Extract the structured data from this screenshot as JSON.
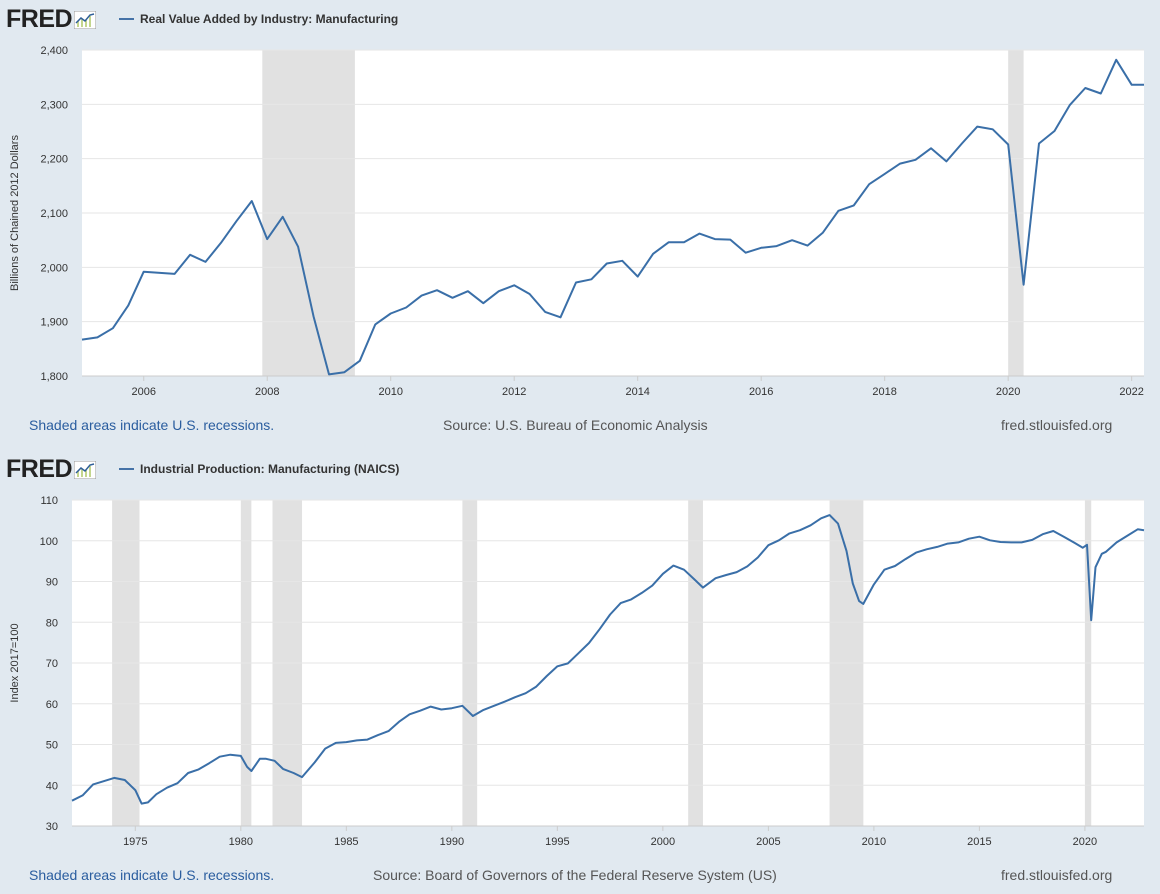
{
  "brand": {
    "logo_text": "FRED"
  },
  "footer": {
    "recession_note": "Shaded areas indicate U.S. recessions.",
    "site": "fred.stlouisfed.org"
  },
  "colors": {
    "line": "#3a6fa8",
    "recession": "#e1e1e1",
    "grid": "#e6e6e6",
    "plot_bg": "#ffffff",
    "page_bg": "#e1e9f0"
  },
  "chart_data": [
    {
      "type": "line",
      "title": "Real Value Added by Industry: Manufacturing",
      "ylabel": "Billions of Chained 2012 Dollars",
      "source": "Source: U.S. Bureau of Economic Analysis",
      "xlim": [
        2005.0,
        2022.2
      ],
      "ylim": [
        1800,
        2400
      ],
      "x_ticks": [
        2006,
        2008,
        2010,
        2012,
        2014,
        2016,
        2018,
        2020,
        2022
      ],
      "x_tick_labels": [
        "2006",
        "2008",
        "2010",
        "2012",
        "2014",
        "2016",
        "2018",
        "2020",
        "2022"
      ],
      "y_ticks": [
        1800,
        1900,
        2000,
        2100,
        2200,
        2300,
        2400
      ],
      "y_tick_labels": [
        "1,800",
        "1,900",
        "2,000",
        "2,100",
        "2,200",
        "2,300",
        "2,400"
      ],
      "recessions": [
        [
          2007.92,
          2009.42
        ],
        [
          2020.0,
          2020.25
        ]
      ],
      "grid": true,
      "series": [
        {
          "x": [
            2005.0,
            2005.25,
            2005.5,
            2005.75,
            2006.0,
            2006.5,
            2006.75,
            2007.0,
            2007.25,
            2007.5,
            2007.75,
            2008.0,
            2008.25,
            2008.5,
            2008.75,
            2009.0,
            2009.25,
            2009.5,
            2009.75,
            2010.0,
            2010.25,
            2010.5,
            2010.75,
            2011.0,
            2011.25,
            2011.5,
            2011.75,
            2012.0,
            2012.25,
            2012.5,
            2012.75,
            2013.0,
            2013.25,
            2013.5,
            2013.75,
            2014.0,
            2014.25,
            2014.5,
            2014.75,
            2015.0,
            2015.25,
            2015.5,
            2015.75,
            2016.0,
            2016.25,
            2016.5,
            2016.75,
            2017.0,
            2017.25,
            2017.5,
            2017.75,
            2018.0,
            2018.25,
            2018.5,
            2018.75,
            2019.0,
            2019.25,
            2019.5,
            2019.75,
            2020.0,
            2020.25,
            2020.5,
            2020.75,
            2021.0,
            2021.25,
            2021.5,
            2021.75,
            2022.0,
            2022.2
          ],
          "values": [
            1867,
            1871,
            1888,
            1930,
            1992,
            1988,
            2023,
            2010,
            2045,
            2085,
            2122,
            2052,
            2093,
            2038,
            1910,
            1803,
            1807,
            1828,
            1895,
            1915,
            1926,
            1948,
            1958,
            1944,
            1956,
            1934,
            1956,
            1967,
            1951,
            1918,
            1908,
            1972,
            1978,
            2007,
            2012,
            1983,
            2025,
            2046,
            2046,
            2062,
            2052,
            2051,
            2027,
            2036,
            2039,
            2050,
            2040,
            2064,
            2104,
            2114,
            2153,
            2172,
            2191,
            2198,
            2219,
            2195,
            2228,
            2259,
            2254,
            2226,
            1968,
            2228,
            2251,
            2299,
            2330,
            2320,
            2382,
            2336,
            2336
          ]
        }
      ]
    },
    {
      "type": "line",
      "title": "Industrial Production: Manufacturing (NAICS)",
      "ylabel": "Index 2017=100",
      "source": "Source: Board of Governors of the Federal Reserve System (US)",
      "xlim": [
        1972.0,
        2022.8
      ],
      "ylim": [
        30,
        110
      ],
      "x_ticks": [
        1975,
        1980,
        1985,
        1990,
        1995,
        2000,
        2005,
        2010,
        2015,
        2020
      ],
      "x_tick_labels": [
        "1975",
        "1980",
        "1985",
        "1990",
        "1995",
        "2000",
        "2005",
        "2010",
        "2015",
        "2020"
      ],
      "y_ticks": [
        30,
        40,
        50,
        60,
        70,
        80,
        90,
        100,
        110
      ],
      "y_tick_labels": [
        "30",
        "40",
        "50",
        "60",
        "70",
        "80",
        "90",
        "100",
        "110"
      ],
      "recessions": [
        [
          1973.9,
          1975.2
        ],
        [
          1980.0,
          1980.5
        ],
        [
          1981.5,
          1982.9
        ],
        [
          1990.5,
          1991.2
        ],
        [
          2001.2,
          2001.9
        ],
        [
          2007.9,
          2009.5
        ],
        [
          2020.0,
          2020.3
        ]
      ],
      "grid": true,
      "series": [
        {
          "x": [
            1972.0,
            1972.5,
            1973.0,
            1973.5,
            1974.0,
            1974.5,
            1975.0,
            1975.3,
            1975.6,
            1976.0,
            1976.5,
            1977.0,
            1977.5,
            1978.0,
            1978.5,
            1979.0,
            1979.5,
            1980.0,
            1980.3,
            1980.5,
            1980.9,
            1981.2,
            1981.6,
            1982.0,
            1982.5,
            1982.9,
            1983.5,
            1984.0,
            1984.5,
            1985.0,
            1985.5,
            1986.0,
            1986.5,
            1987.0,
            1987.5,
            1988.0,
            1988.5,
            1989.0,
            1989.5,
            1990.0,
            1990.5,
            1991.0,
            1991.5,
            1992.0,
            1992.5,
            1993.0,
            1993.5,
            1994.0,
            1994.5,
            1995.0,
            1995.5,
            1996.0,
            1996.5,
            1997.0,
            1997.5,
            1998.0,
            1998.5,
            1999.0,
            1999.5,
            2000.0,
            2000.5,
            2001.0,
            2001.5,
            2001.9,
            2002.5,
            2003.0,
            2003.5,
            2004.0,
            2004.5,
            2005.0,
            2005.5,
            2006.0,
            2006.5,
            2007.0,
            2007.5,
            2007.9,
            2008.3,
            2008.7,
            2009.0,
            2009.3,
            2009.5,
            2010.0,
            2010.5,
            2011.0,
            2011.5,
            2012.0,
            2012.5,
            2013.0,
            2013.5,
            2014.0,
            2014.5,
            2015.0,
            2015.5,
            2016.0,
            2016.5,
            2017.0,
            2017.5,
            2018.0,
            2018.5,
            2019.0,
            2019.5,
            2019.9,
            2020.1,
            2020.3,
            2020.5,
            2020.8,
            2021.0,
            2021.5,
            2022.0,
            2022.5,
            2022.8
          ],
          "values": [
            36.2,
            37.5,
            40.2,
            41.0,
            41.8,
            41.3,
            38.8,
            35.5,
            35.8,
            37.8,
            39.4,
            40.5,
            43.0,
            43.9,
            45.4,
            47.0,
            47.5,
            47.2,
            44.5,
            43.5,
            46.5,
            46.5,
            46.0,
            44.0,
            43.0,
            42.0,
            45.6,
            49.0,
            50.4,
            50.6,
            51.0,
            51.2,
            52.3,
            53.3,
            55.6,
            57.4,
            58.3,
            59.3,
            58.6,
            58.9,
            59.5,
            57.0,
            58.5,
            59.5,
            60.5,
            61.6,
            62.6,
            64.2,
            66.8,
            69.2,
            69.9,
            72.4,
            74.9,
            78.3,
            81.9,
            84.7,
            85.6,
            87.2,
            89.0,
            91.9,
            93.9,
            92.9,
            90.5,
            88.5,
            90.8,
            91.6,
            92.3,
            93.7,
            95.9,
            98.9,
            100.1,
            101.8,
            102.6,
            103.8,
            105.5,
            106.3,
            104.2,
            97.5,
            89.5,
            85.2,
            84.5,
            89.3,
            92.9,
            93.8,
            95.5,
            97.1,
            97.9,
            98.5,
            99.3,
            99.6,
            100.5,
            101.0,
            100.1,
            99.7,
            99.6,
            99.6,
            100.2,
            101.6,
            102.4,
            101.0,
            99.5,
            98.3,
            99.0,
            80.5,
            93.5,
            96.8,
            97.3,
            99.6,
            101.2,
            102.8,
            102.6
          ]
        }
      ]
    }
  ]
}
